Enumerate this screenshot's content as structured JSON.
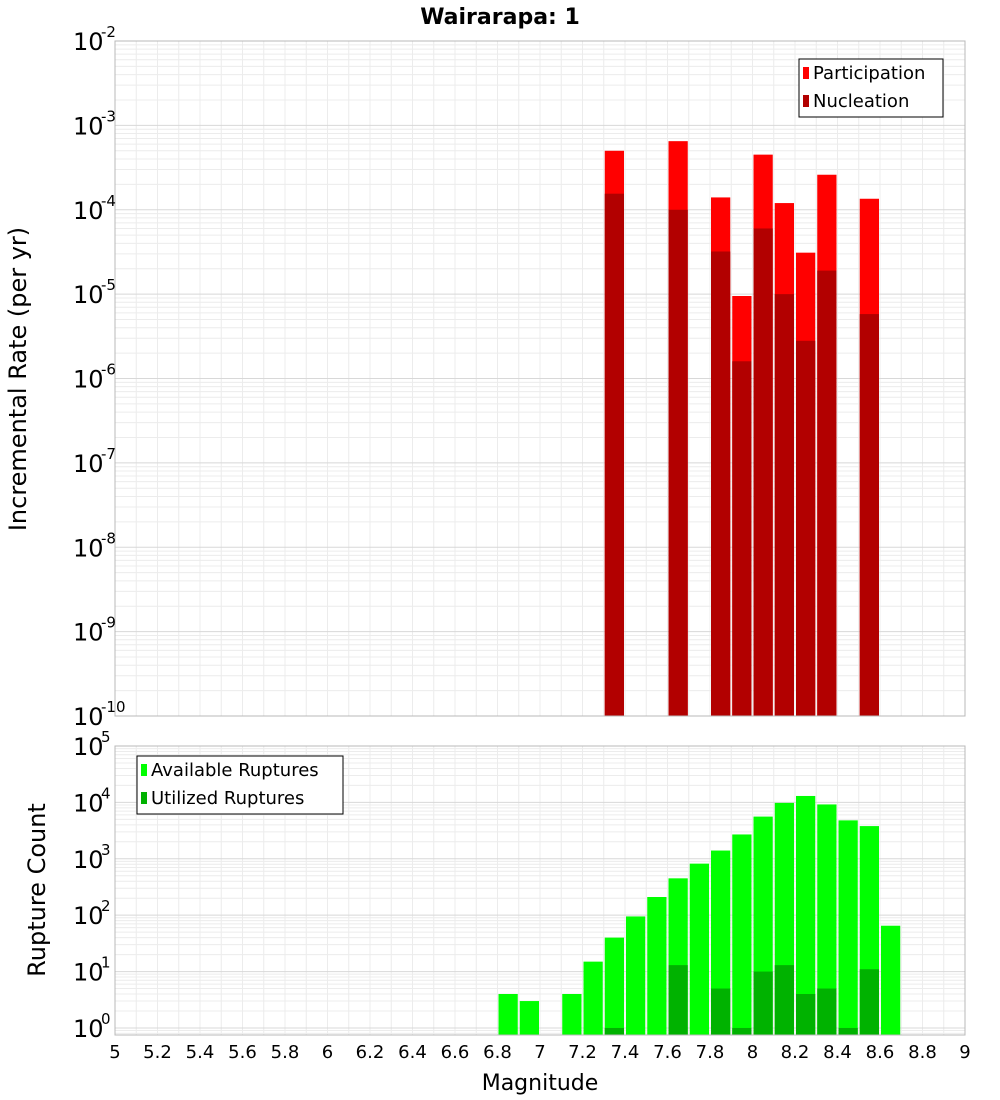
{
  "chart_data": {
    "title": "Wairarapa: 1",
    "xlabel": "Magnitude",
    "x_ticks": [
      "5",
      "5.2",
      "5.4",
      "5.6",
      "5.8",
      "6",
      "6.2",
      "6.4",
      "6.6",
      "6.8",
      "7",
      "7.2",
      "7.4",
      "7.6",
      "7.8",
      "8",
      "8.2",
      "8.4",
      "8.6",
      "8.8",
      "9"
    ],
    "xlim": [
      5,
      9
    ],
    "bin_width": 0.1,
    "panels": [
      {
        "type": "bar",
        "ylabel": "Incremental Rate (per yr)",
        "yscale": "log",
        "ylim": [
          1e-10,
          0.01
        ],
        "y_tick_exponents": [
          "-10",
          "-9",
          "-8",
          "-7",
          "-6",
          "-5",
          "-4",
          "-3",
          "-2"
        ],
        "y_tick_base": "10",
        "legend_position": "top-right",
        "colors": {
          "Participation": "#ff0000",
          "Nucleation": "#b20000"
        },
        "series": [
          {
            "name": "Participation",
            "x": [
              7.35,
              7.65,
              7.85,
              7.95,
              8.05,
              8.15,
              8.25,
              8.35,
              8.55
            ],
            "values": [
              0.0005,
              0.00065,
              0.00014,
              9.5e-06,
              0.00045,
              0.00012,
              3.1e-05,
              0.00026,
              0.000135
            ]
          },
          {
            "name": "Nucleation",
            "x": [
              7.35,
              7.65,
              7.85,
              7.95,
              8.05,
              8.15,
              8.25,
              8.35,
              8.55
            ],
            "values": [
              0.000155,
              0.0001,
              3.2e-05,
              1.6e-06,
              6e-05,
              1e-05,
              2.8e-06,
              1.9e-05,
              5.8e-06
            ]
          }
        ]
      },
      {
        "type": "bar",
        "ylabel": "Rupture Count",
        "yscale": "log",
        "ylim": [
          0.75,
          100000.0
        ],
        "y_tick_exponents": [
          "0",
          "1",
          "2",
          "3",
          "4",
          "5"
        ],
        "y_tick_base": "10",
        "legend_position": "top-left",
        "colors": {
          "Available Ruptures": "#00ff00",
          "Utilized Ruptures": "#00b200"
        },
        "series": [
          {
            "name": "Available Ruptures",
            "x": [
              6.85,
              6.95,
              7.15,
              7.25,
              7.35,
              7.45,
              7.55,
              7.65,
              7.75,
              7.85,
              7.95,
              8.05,
              8.15,
              8.25,
              8.35,
              8.45,
              8.55,
              8.65
            ],
            "values": [
              4,
              3,
              4,
              15,
              40,
              95,
              210,
              450,
              820,
              1400,
              2700,
              5600,
              9800,
              13000,
              9200,
              4800,
              3800,
              65
            ]
          },
          {
            "name": "Utilized Ruptures",
            "x": [
              7.35,
              7.65,
              7.85,
              7.95,
              8.05,
              8.15,
              8.25,
              8.35,
              8.45,
              8.55
            ],
            "values": [
              1,
              13,
              5,
              1,
              10,
              13,
              4,
              5,
              1,
              11
            ]
          }
        ]
      }
    ]
  }
}
